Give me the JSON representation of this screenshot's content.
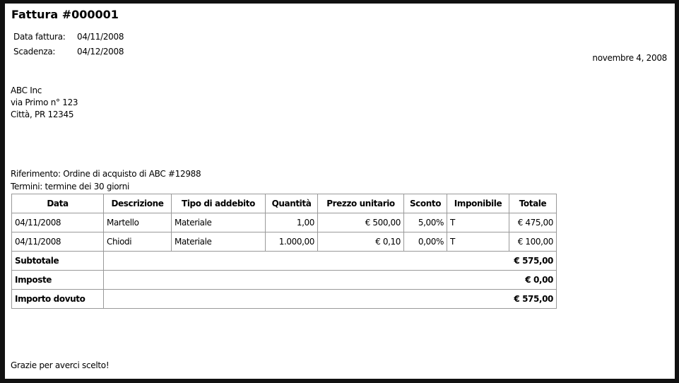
{
  "title": "Fattura #000001",
  "meta": {
    "invoice_date_label": "Data fattura:",
    "invoice_date": "04/11/2008",
    "due_label": "Scadenza:",
    "due_date": "04/12/2008",
    "print_date": "novembre 4, 2008"
  },
  "customer": {
    "name": "ABC Inc",
    "street": "via Primo n° 123",
    "city": "Città, PR 12345"
  },
  "reference": "Riferimento: Ordine di acquisto di ABC #12988",
  "terms": "Termini: termine dei 30 giorni",
  "table": {
    "headers": [
      "Data",
      "Descrizione",
      "Tipo di addebito",
      "Quantità",
      "Prezzo unitario",
      "Sconto",
      "Imponibile",
      "Totale"
    ],
    "rows": [
      [
        "04/11/2008",
        "Martello",
        "Materiale",
        "1,00",
        "€ 500,00",
        "5,00%",
        "T",
        "€ 475,00"
      ],
      [
        "04/11/2008",
        "Chiodi",
        "Materiale",
        "1.000,00",
        "€ 0,10",
        "0,00%",
        "T",
        "€ 100,00"
      ]
    ],
    "totals": [
      {
        "label": "Subtotale",
        "value": "€ 575,00"
      },
      {
        "label": "Imposte",
        "value": "€ 0,00"
      },
      {
        "label": "Importo dovuto",
        "value": "€ 575,00"
      }
    ]
  },
  "footer": "Grazie per averci scelto!"
}
